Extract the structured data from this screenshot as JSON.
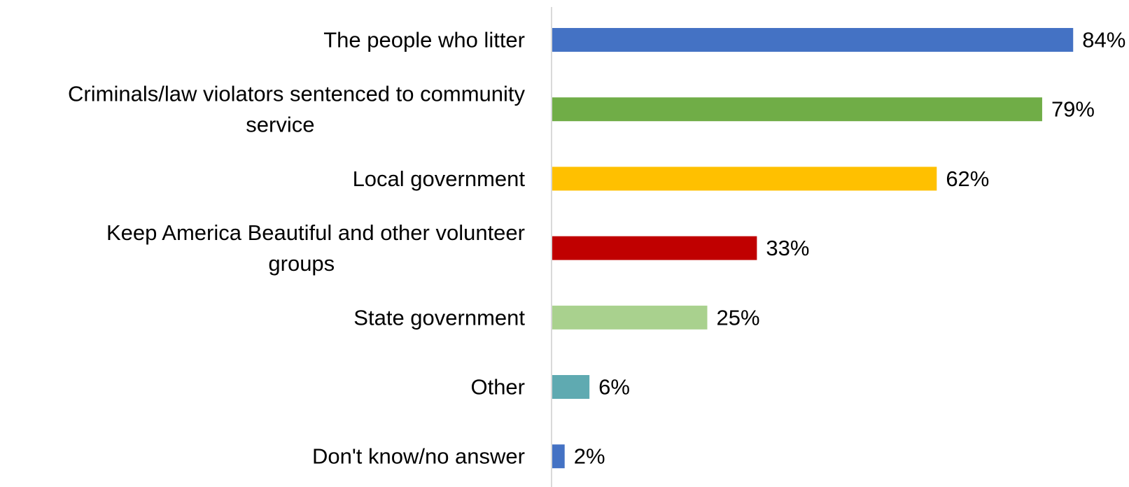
{
  "chart_data": {
    "type": "bar",
    "orientation": "horizontal",
    "categories": [
      [
        "The people who litter"
      ],
      [
        "Criminals/law violators sentenced to community",
        "service"
      ],
      [
        "Local government"
      ],
      [
        "Keep America Beautiful and other volunteer",
        "groups"
      ],
      [
        "State government"
      ],
      [
        "Other"
      ],
      [
        "Don't know/no answer"
      ]
    ],
    "values": [
      84,
      79,
      62,
      33,
      25,
      6,
      2
    ],
    "value_labels": [
      "84%",
      "79%",
      "62%",
      "33%",
      "25%",
      "6%",
      "2%"
    ],
    "colors": [
      "#4472C4",
      "#70AD47",
      "#FFC000",
      "#C00000",
      "#A9D18E",
      "#5FAAB1",
      "#4472C4"
    ],
    "xlim": [
      0,
      100
    ],
    "grid": false,
    "legend": "none"
  }
}
